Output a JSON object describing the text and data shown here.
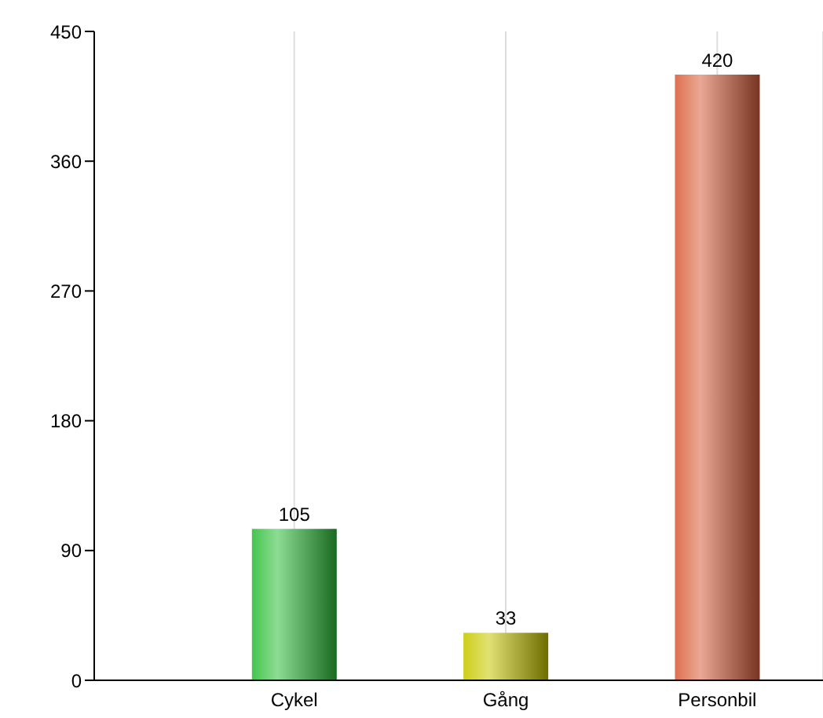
{
  "chart_data": {
    "type": "bar",
    "categories": [
      "Cykel",
      "Gång",
      "Personbil"
    ],
    "values": [
      105,
      33,
      420
    ],
    "colors": [
      "#2fbf3a",
      "#c8c800",
      "#d9603c"
    ],
    "ylim": [
      0,
      450
    ],
    "yticks": [
      0,
      90,
      180,
      270,
      360,
      450
    ],
    "grid": "x",
    "data_labels": true
  }
}
